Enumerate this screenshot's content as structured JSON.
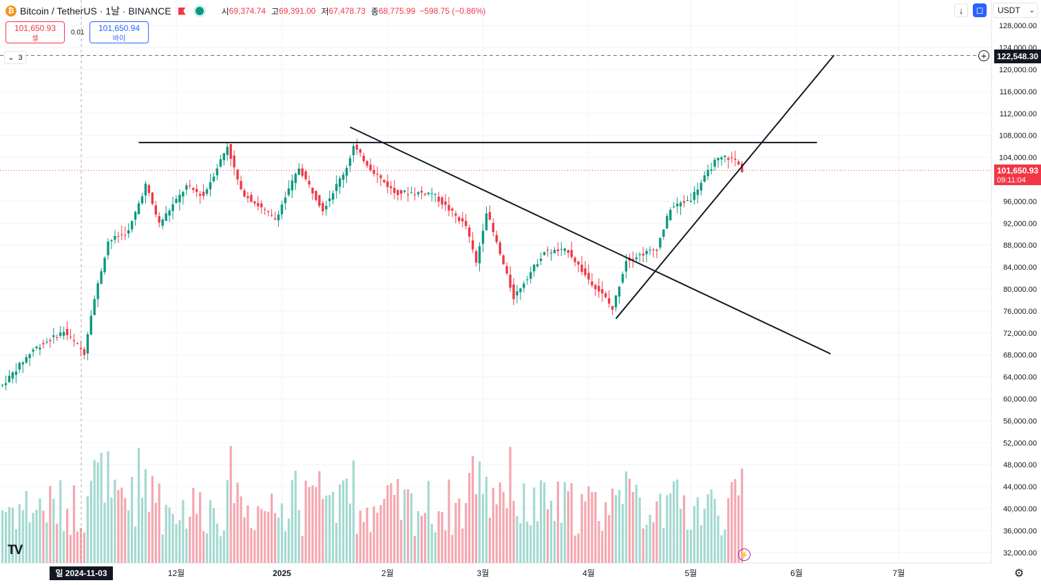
{
  "legend": {
    "symbol": "Bitcoin / TetherUS · 1날 · BINANCE",
    "open_label": "시",
    "open": "69,374.74",
    "high_label": "고",
    "high": "69,391.00",
    "low_label": "저",
    "low": "67,478.73",
    "close_label": "종",
    "close": "68,775.99",
    "change": "−598.75 (−0.86%)"
  },
  "trade": {
    "sell_price": "101,650.93",
    "sell_label": "셀",
    "spread": "0.01",
    "buy_price": "101,650.94",
    "buy_label": "바이"
  },
  "indicator_toggle": {
    "count": "3"
  },
  "toolbar": {
    "currency": "USDT"
  },
  "price_tags": {
    "target": "122,548.30",
    "last_price": "101,650.93",
    "countdown": "09:11:04"
  },
  "crosshair": {
    "date_label": "일 2024-11-03"
  },
  "colors": {
    "up": "#089981",
    "down": "#f23645",
    "vol_up": "#a3d9d0",
    "vol_down": "#f5a6ae",
    "line": "#131722",
    "accent": "#2962ff"
  },
  "chart_data": {
    "type": "candlestick",
    "interval": "1D",
    "y_axis": {
      "ticks": [
        32000,
        36000,
        40000,
        44000,
        48000,
        52000,
        56000,
        60000,
        64000,
        68000,
        72000,
        76000,
        80000,
        84000,
        88000,
        92000,
        96000,
        104000,
        108000,
        112000,
        116000,
        120000,
        124000,
        128000
      ],
      "tick_labels": [
        "32,000.00",
        "36,000.00",
        "40,000.00",
        "44,000.00",
        "48,000.00",
        "52,000.00",
        "56,000.00",
        "60,000.00",
        "64,000.00",
        "68,000.00",
        "72,000.00",
        "76,000.00",
        "80,000.00",
        "84,000.00",
        "88,000.00",
        "92,000.00",
        "96,000.00",
        "104,000.00",
        "108,000.00",
        "112,000.00",
        "116,000.00",
        "120,000.00",
        "124,000.00",
        "128,000.00"
      ]
    },
    "x_axis": {
      "labels": [
        {
          "text": "12월",
          "date": "2024-12-01"
        },
        {
          "text": "2025",
          "date": "2025-01-01"
        },
        {
          "text": "2월",
          "date": "2025-02-01"
        },
        {
          "text": "3월",
          "date": "2025-03-01"
        },
        {
          "text": "4월",
          "date": "2025-04-01"
        },
        {
          "text": "5월",
          "date": "2025-05-01"
        },
        {
          "text": "6월",
          "date": "2025-06-01"
        },
        {
          "text": "7월",
          "date": "2025-07-01"
        }
      ]
    },
    "last_price": 101650.93,
    "series_close": [
      {
        "date": "2024-10-11",
        "close": 62500
      },
      {
        "date": "2024-10-20",
        "close": 69000
      },
      {
        "date": "2024-10-29",
        "close": 72300
      },
      {
        "date": "2024-11-04",
        "close": 68400
      },
      {
        "date": "2024-11-06",
        "close": 75600
      },
      {
        "date": "2024-11-11",
        "close": 88700
      },
      {
        "date": "2024-11-17",
        "close": 90500
      },
      {
        "date": "2024-11-22",
        "close": 99000
      },
      {
        "date": "2024-11-26",
        "close": 91900
      },
      {
        "date": "2024-12-04",
        "close": 98700
      },
      {
        "date": "2024-12-09",
        "close": 97000
      },
      {
        "date": "2024-12-16",
        "close": 106100
      },
      {
        "date": "2024-12-20",
        "close": 97800
      },
      {
        "date": "2024-12-30",
        "close": 92700
      },
      {
        "date": "2025-01-06",
        "close": 102100
      },
      {
        "date": "2025-01-13",
        "close": 94500
      },
      {
        "date": "2025-01-20",
        "close": 102200
      },
      {
        "date": "2025-01-22",
        "close": 106000
      },
      {
        "date": "2025-01-27",
        "close": 102000
      },
      {
        "date": "2025-02-03",
        "close": 97600
      },
      {
        "date": "2025-02-14",
        "close": 97500
      },
      {
        "date": "2025-02-24",
        "close": 91500
      },
      {
        "date": "2025-02-27",
        "close": 84700
      },
      {
        "date": "2025-03-02",
        "close": 94200
      },
      {
        "date": "2025-03-10",
        "close": 78500
      },
      {
        "date": "2025-03-19",
        "close": 86800
      },
      {
        "date": "2025-03-26",
        "close": 87000
      },
      {
        "date": "2025-03-31",
        "close": 82500
      },
      {
        "date": "2025-04-06",
        "close": 78300
      },
      {
        "date": "2025-04-08",
        "close": 76300
      },
      {
        "date": "2025-04-12",
        "close": 85300
      },
      {
        "date": "2025-04-21",
        "close": 87400
      },
      {
        "date": "2025-04-25",
        "close": 94700
      },
      {
        "date": "2025-05-01",
        "close": 96500
      },
      {
        "date": "2025-05-08",
        "close": 103200
      },
      {
        "date": "2025-05-11",
        "close": 104100
      },
      {
        "date": "2025-05-14",
        "close": 103500
      },
      {
        "date": "2025-05-16",
        "close": 101650
      }
    ],
    "drawings": [
      {
        "kind": "horizontal",
        "from": {
          "date": "2024-11-20",
          "price": 106700
        },
        "to": {
          "date": "2025-06-07",
          "price": 106700
        }
      },
      {
        "kind": "trendline",
        "from": {
          "date": "2025-01-21",
          "price": 109500
        },
        "to": {
          "date": "2025-06-11",
          "price": 68200
        }
      },
      {
        "kind": "trendline",
        "from": {
          "date": "2025-04-09",
          "price": 74600
        },
        "to": {
          "date": "2025-06-12",
          "price": 122600
        }
      },
      {
        "kind": "price_level",
        "price": 122548.3
      }
    ]
  }
}
